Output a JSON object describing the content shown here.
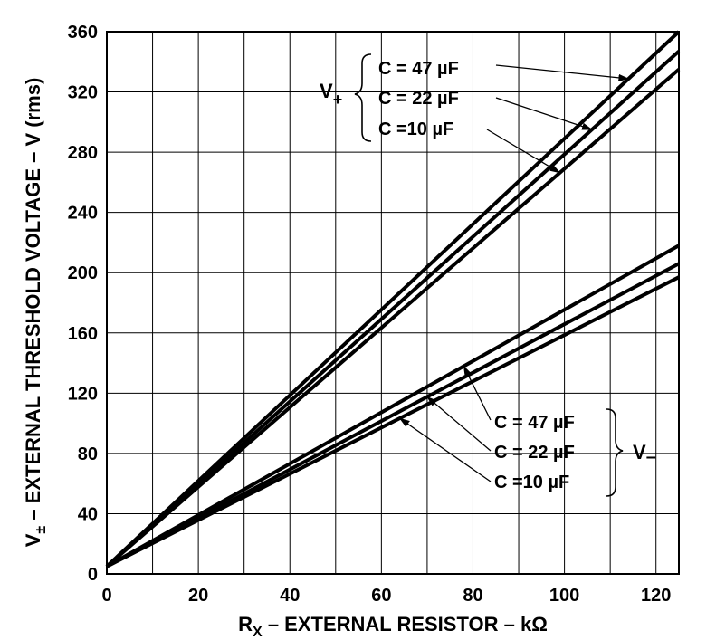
{
  "chart_data": {
    "type": "line",
    "xlabel": {
      "main": "R",
      "sub": "X",
      "rest": " – EXTERNAL RESISTOR – kΩ"
    },
    "ylabel": {
      "main": "V",
      "sub": "±",
      "rest": " – EXTERNAL THRESHOLD VOLTAGE – V (rms)"
    },
    "xlim": [
      0,
      125
    ],
    "ylim": [
      0,
      360
    ],
    "x_ticks": [
      0,
      20,
      40,
      60,
      80,
      100,
      120
    ],
    "y_ticks": [
      0,
      40,
      80,
      120,
      160,
      200,
      240,
      280,
      320,
      360
    ],
    "x_grid": [
      0,
      10,
      20,
      30,
      40,
      50,
      60,
      70,
      80,
      90,
      100,
      110,
      120
    ],
    "y_grid": [
      0,
      40,
      80,
      120,
      160,
      200,
      240,
      280,
      320,
      360
    ],
    "grid": true,
    "groups": [
      {
        "label": "V",
        "sub": "+",
        "placement": "top-right"
      },
      {
        "label": "V",
        "sub": "–",
        "placement": "bottom-right"
      }
    ],
    "series": [
      {
        "name": "C = 47 µF",
        "group": "V+",
        "x": [
          0,
          125
        ],
        "y": [
          5,
          360
        ]
      },
      {
        "name": "C = 22 µF",
        "group": "V+",
        "x": [
          0,
          125
        ],
        "y": [
          5,
          347
        ]
      },
      {
        "name": "C =10 µF",
        "group": "V+",
        "x": [
          0,
          125
        ],
        "y": [
          5,
          335
        ]
      },
      {
        "name": "C = 47 µF",
        "group": "V−",
        "x": [
          0,
          125
        ],
        "y": [
          5,
          218
        ]
      },
      {
        "name": "C = 22 µF",
        "group": "V−",
        "x": [
          0,
          125
        ],
        "y": [
          5,
          206
        ]
      },
      {
        "name": "C =10 µF",
        "group": "V−",
        "x": [
          0,
          125
        ],
        "y": [
          5,
          197
        ]
      }
    ],
    "annotations": [
      {
        "group": "V+",
        "text": "C = 47 µF",
        "points_to_x": 114
      },
      {
        "group": "V+",
        "text": "C = 22 µF",
        "points_to_x": 106
      },
      {
        "group": "V+",
        "text": "C =10 µF",
        "points_to_x": 99
      },
      {
        "group": "V−",
        "text": "C = 47 µF",
        "points_to_x": 78
      },
      {
        "group": "V−",
        "text": "C = 22 µF",
        "points_to_x": 70
      },
      {
        "group": "V−",
        "text": "C =10 µF",
        "points_to_x": 64
      }
    ]
  }
}
